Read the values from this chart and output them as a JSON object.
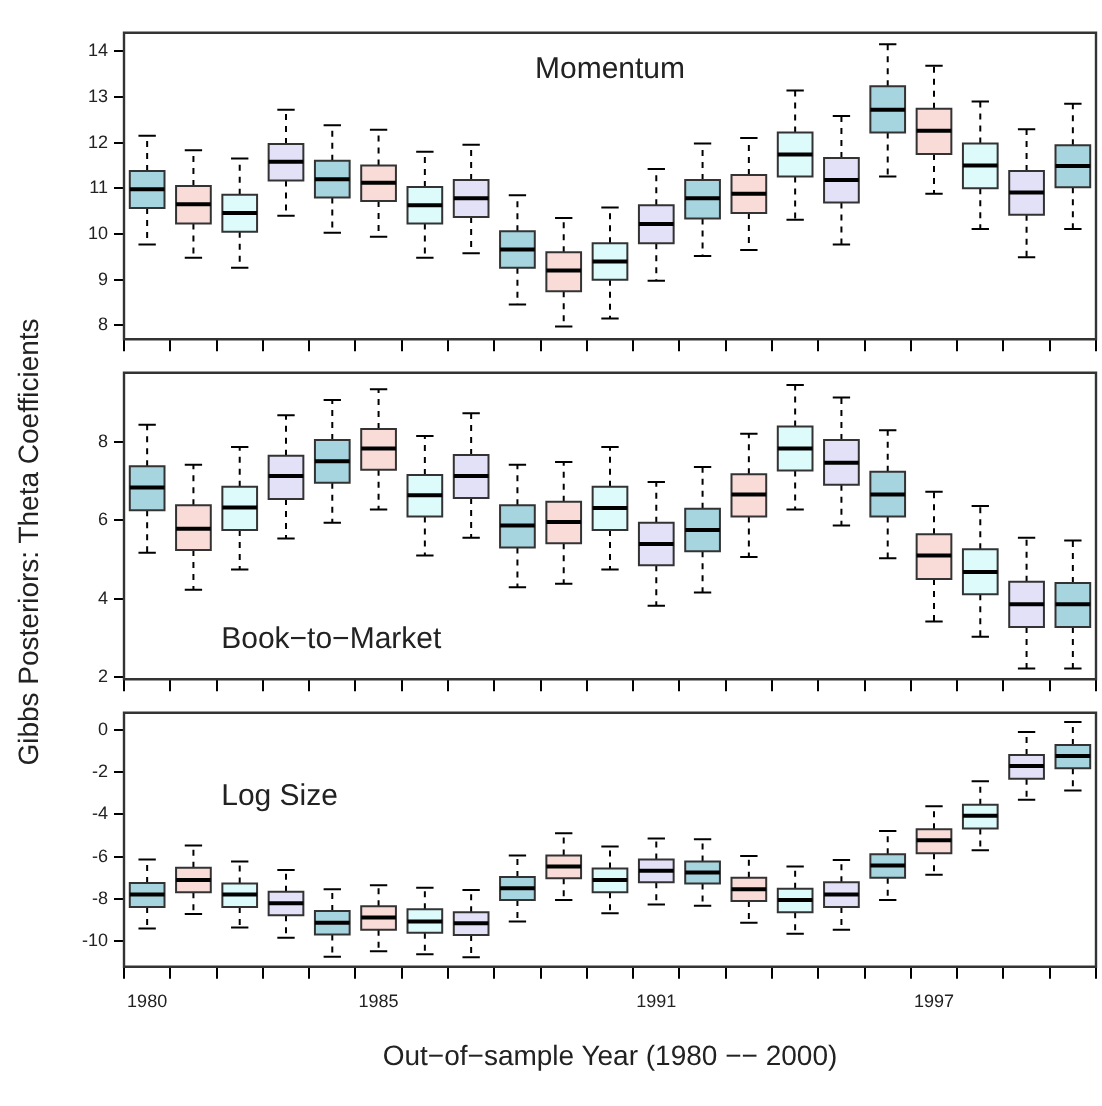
{
  "chart_data": [
    {
      "type": "box",
      "annotations": [
        "Momentum"
      ],
      "categories": [
        "1980",
        null,
        null,
        null,
        null,
        "1985",
        null,
        null,
        null,
        null,
        null,
        "1991",
        null,
        null,
        null,
        null,
        null,
        "1997",
        null,
        null,
        null
      ],
      "colors": [
        "#a6d4df",
        "#f9dcd8",
        "#ddfbfb",
        "#e3e1f8",
        "#a6d4df",
        "#f9dcd8",
        "#ddfbfb",
        "#e3e1f8",
        "#a6d4df",
        "#f9dcd8",
        "#ddfbfb",
        "#e3e1f8",
        "#a6d4df",
        "#f9dcd8",
        "#ddfbfb",
        "#e3e1f8",
        "#a6d4df",
        "#f9dcd8",
        "#ddfbfb",
        "#e3e1f8",
        "#a6d4df"
      ],
      "boxes": [
        {
          "low": 9.77,
          "q1": 10.57,
          "median": 10.98,
          "q3": 11.38,
          "high": 12.15
        },
        {
          "low": 9.48,
          "q1": 10.23,
          "median": 10.65,
          "q3": 11.05,
          "high": 11.83
        },
        {
          "low": 9.26,
          "q1": 10.05,
          "median": 10.46,
          "q3": 10.86,
          "high": 11.65
        },
        {
          "low": 10.4,
          "q1": 11.17,
          "median": 11.58,
          "q3": 11.97,
          "high": 12.72
        },
        {
          "low": 10.03,
          "q1": 10.8,
          "median": 11.2,
          "q3": 11.6,
          "high": 12.38
        },
        {
          "low": 9.94,
          "q1": 10.72,
          "median": 11.12,
          "q3": 11.5,
          "high": 12.28
        },
        {
          "low": 9.48,
          "q1": 10.23,
          "median": 10.63,
          "q3": 11.03,
          "high": 11.8
        },
        {
          "low": 9.58,
          "q1": 10.37,
          "median": 10.78,
          "q3": 11.18,
          "high": 11.95
        },
        {
          "low": 8.46,
          "q1": 9.26,
          "median": 9.66,
          "q3": 10.06,
          "high": 10.85
        },
        {
          "low": 7.98,
          "q1": 8.75,
          "median": 9.2,
          "q3": 9.6,
          "high": 10.35
        },
        {
          "low": 8.15,
          "q1": 9.0,
          "median": 9.4,
          "q3": 9.8,
          "high": 10.58
        },
        {
          "low": 8.98,
          "q1": 9.8,
          "median": 10.22,
          "q3": 10.63,
          "high": 11.42
        },
        {
          "low": 9.52,
          "q1": 10.34,
          "median": 10.78,
          "q3": 11.18,
          "high": 11.98
        },
        {
          "low": 9.65,
          "q1": 10.46,
          "median": 10.88,
          "q3": 11.29,
          "high": 12.1
        },
        {
          "low": 10.31,
          "q1": 11.26,
          "median": 11.74,
          "q3": 12.22,
          "high": 13.14
        },
        {
          "low": 9.77,
          "q1": 10.69,
          "median": 11.18,
          "q3": 11.66,
          "high": 12.58
        },
        {
          "low": 11.26,
          "q1": 12.22,
          "median": 12.72,
          "q3": 13.23,
          "high": 14.15
        },
        {
          "low": 10.88,
          "q1": 11.75,
          "median": 12.26,
          "q3": 12.74,
          "high": 13.68
        },
        {
          "low": 10.11,
          "q1": 11.0,
          "median": 11.5,
          "q3": 11.98,
          "high": 12.9
        },
        {
          "low": 9.49,
          "q1": 10.42,
          "median": 10.91,
          "q3": 11.38,
          "high": 12.29
        },
        {
          "low": 10.11,
          "q1": 11.02,
          "median": 11.49,
          "q3": 11.94,
          "high": 12.85
        }
      ],
      "ylim": [
        7.7,
        14.4
      ],
      "yticks": [
        8,
        9,
        10,
        11,
        12,
        13,
        14
      ],
      "tick_labels": "y"
    },
    {
      "type": "box",
      "ylabel": "Gibbs Posteriors: Theta Coefficients",
      "annotations": [
        "Book−to−Market"
      ],
      "categories": [
        "1980",
        null,
        null,
        null,
        null,
        "1985",
        null,
        null,
        null,
        null,
        null,
        "1991",
        null,
        null,
        null,
        null,
        null,
        "1997",
        null,
        null,
        null
      ],
      "colors": [
        "#a6d4df",
        "#f9dcd8",
        "#ddfbfb",
        "#e3e1f8",
        "#a6d4df",
        "#f9dcd8",
        "#ddfbfb",
        "#e3e1f8",
        "#a6d4df",
        "#f9dcd8",
        "#ddfbfb",
        "#e3e1f8",
        "#a6d4df",
        "#f9dcd8",
        "#ddfbfb",
        "#e3e1f8",
        "#a6d4df",
        "#f9dcd8",
        "#ddfbfb",
        "#e3e1f8",
        "#a6d4df"
      ],
      "boxes": [
        {
          "low": 5.17,
          "q1": 6.25,
          "median": 6.83,
          "q3": 7.37,
          "high": 8.43
        },
        {
          "low": 4.23,
          "q1": 5.24,
          "median": 5.78,
          "q3": 6.38,
          "high": 7.41
        },
        {
          "low": 4.74,
          "q1": 5.75,
          "median": 6.32,
          "q3": 6.85,
          "high": 7.86
        },
        {
          "low": 5.53,
          "q1": 6.54,
          "median": 7.12,
          "q3": 7.64,
          "high": 8.67
        },
        {
          "low": 5.93,
          "q1": 6.95,
          "median": 7.5,
          "q3": 8.04,
          "high": 9.06
        },
        {
          "low": 6.27,
          "q1": 7.28,
          "median": 7.82,
          "q3": 8.32,
          "high": 9.33
        },
        {
          "low": 5.1,
          "q1": 6.09,
          "median": 6.63,
          "q3": 7.15,
          "high": 8.14
        },
        {
          "low": 5.55,
          "q1": 6.56,
          "median": 7.12,
          "q3": 7.66,
          "high": 8.72
        },
        {
          "low": 4.29,
          "q1": 5.3,
          "median": 5.86,
          "q3": 6.38,
          "high": 7.41
        },
        {
          "low": 4.38,
          "q1": 5.41,
          "median": 5.95,
          "q3": 6.47,
          "high": 7.48
        },
        {
          "low": 4.74,
          "q1": 5.75,
          "median": 6.31,
          "q3": 6.85,
          "high": 7.86
        },
        {
          "low": 3.82,
          "q1": 4.85,
          "median": 5.39,
          "q3": 5.93,
          "high": 6.97
        },
        {
          "low": 4.16,
          "q1": 5.21,
          "median": 5.75,
          "q3": 6.29,
          "high": 7.35
        },
        {
          "low": 5.06,
          "q1": 6.09,
          "median": 6.65,
          "q3": 7.17,
          "high": 8.2
        },
        {
          "low": 6.27,
          "q1": 7.26,
          "median": 7.82,
          "q3": 8.38,
          "high": 9.44
        },
        {
          "low": 5.86,
          "q1": 6.9,
          "median": 7.46,
          "q3": 8.04,
          "high": 9.12
        },
        {
          "low": 5.03,
          "q1": 6.09,
          "median": 6.65,
          "q3": 7.23,
          "high": 8.29
        },
        {
          "low": 3.42,
          "q1": 4.5,
          "median": 5.1,
          "q3": 5.64,
          "high": 6.72
        },
        {
          "low": 3.03,
          "q1": 4.11,
          "median": 4.68,
          "q3": 5.26,
          "high": 6.36
        },
        {
          "low": 2.22,
          "q1": 3.28,
          "median": 3.86,
          "q3": 4.43,
          "high": 5.55
        },
        {
          "low": 2.22,
          "q1": 3.28,
          "median": 3.86,
          "q3": 4.4,
          "high": 5.48
        }
      ],
      "ylim": [
        1.95,
        9.75
      ],
      "yticks": [
        2,
        4,
        6,
        8
      ],
      "tick_labels": "y"
    },
    {
      "type": "box",
      "xlabel": "Out−of−sample Year (1980 −− 2000)",
      "annotations": [
        "Log Size"
      ],
      "categories": [
        "1980",
        null,
        null,
        null,
        null,
        "1985",
        null,
        null,
        null,
        null,
        null,
        "1991",
        null,
        null,
        null,
        null,
        null,
        "1997",
        null,
        null,
        null
      ],
      "colors": [
        "#a6d4df",
        "#f9dcd8",
        "#ddfbfb",
        "#e3e1f8",
        "#a6d4df",
        "#f9dcd8",
        "#ddfbfb",
        "#e3e1f8",
        "#a6d4df",
        "#f9dcd8",
        "#ddfbfb",
        "#e3e1f8",
        "#a6d4df",
        "#f9dcd8",
        "#ddfbfb",
        "#e3e1f8",
        "#a6d4df",
        "#f9dcd8",
        "#ddfbfb",
        "#e3e1f8",
        "#a6d4df"
      ],
      "boxes": [
        {
          "low": -9.39,
          "q1": -8.37,
          "median": -7.79,
          "q3": -7.24,
          "high": -6.13
        },
        {
          "low": -8.7,
          "q1": -7.68,
          "median": -7.1,
          "q3": -6.52,
          "high": -5.47
        },
        {
          "low": -9.34,
          "q1": -8.37,
          "median": -7.79,
          "q3": -7.27,
          "high": -6.22
        },
        {
          "low": -9.83,
          "q1": -8.76,
          "median": -8.2,
          "q3": -7.65,
          "high": -6.63
        },
        {
          "low": -10.72,
          "q1": -9.67,
          "median": -9.12,
          "q3": -8.56,
          "high": -7.54
        },
        {
          "low": -10.47,
          "q1": -9.45,
          "median": -8.87,
          "q3": -8.34,
          "high": -7.35
        },
        {
          "low": -10.61,
          "q1": -9.59,
          "median": -9.06,
          "q3": -8.48,
          "high": -7.46
        },
        {
          "low": -10.75,
          "q1": -9.7,
          "median": -9.14,
          "q3": -8.62,
          "high": -7.57
        },
        {
          "low": -9.06,
          "q1": -8.04,
          "median": -7.49,
          "q3": -6.96,
          "high": -5.94
        },
        {
          "low": -8.04,
          "q1": -7.02,
          "median": -6.46,
          "q3": -5.94,
          "high": -4.89
        },
        {
          "low": -8.67,
          "q1": -7.68,
          "median": -7.1,
          "q3": -6.55,
          "high": -5.52
        },
        {
          "low": -8.26,
          "q1": -7.21,
          "median": -6.66,
          "q3": -6.13,
          "high": -5.14
        },
        {
          "low": -8.31,
          "q1": -7.27,
          "median": -6.74,
          "q3": -6.22,
          "high": -5.17
        },
        {
          "low": -9.12,
          "q1": -8.09,
          "median": -7.54,
          "q3": -6.99,
          "high": -5.97
        },
        {
          "low": -9.64,
          "q1": -8.62,
          "median": -8.04,
          "q3": -7.51,
          "high": -6.46
        },
        {
          "low": -9.45,
          "q1": -8.37,
          "median": -7.79,
          "q3": -7.21,
          "high": -6.16
        },
        {
          "low": -8.04,
          "q1": -6.99,
          "median": -6.41,
          "q3": -5.88,
          "high": -4.78
        },
        {
          "low": -6.85,
          "q1": -5.83,
          "median": -5.22,
          "q3": -4.7,
          "high": -3.62
        },
        {
          "low": -5.69,
          "q1": -4.67,
          "median": -4.06,
          "q3": -3.54,
          "high": -2.43
        },
        {
          "low": -3.31,
          "q1": -2.32,
          "median": -1.71,
          "q3": -1.19,
          "high": -0.11
        },
        {
          "low": -2.87,
          "q1": -1.82,
          "median": -1.24,
          "q3": -0.72,
          "high": 0.36
        }
      ],
      "ylim": [
        -11.2,
        0.8
      ],
      "yticks": [
        -10,
        -8,
        -6,
        -4,
        -2,
        0
      ]
    }
  ]
}
